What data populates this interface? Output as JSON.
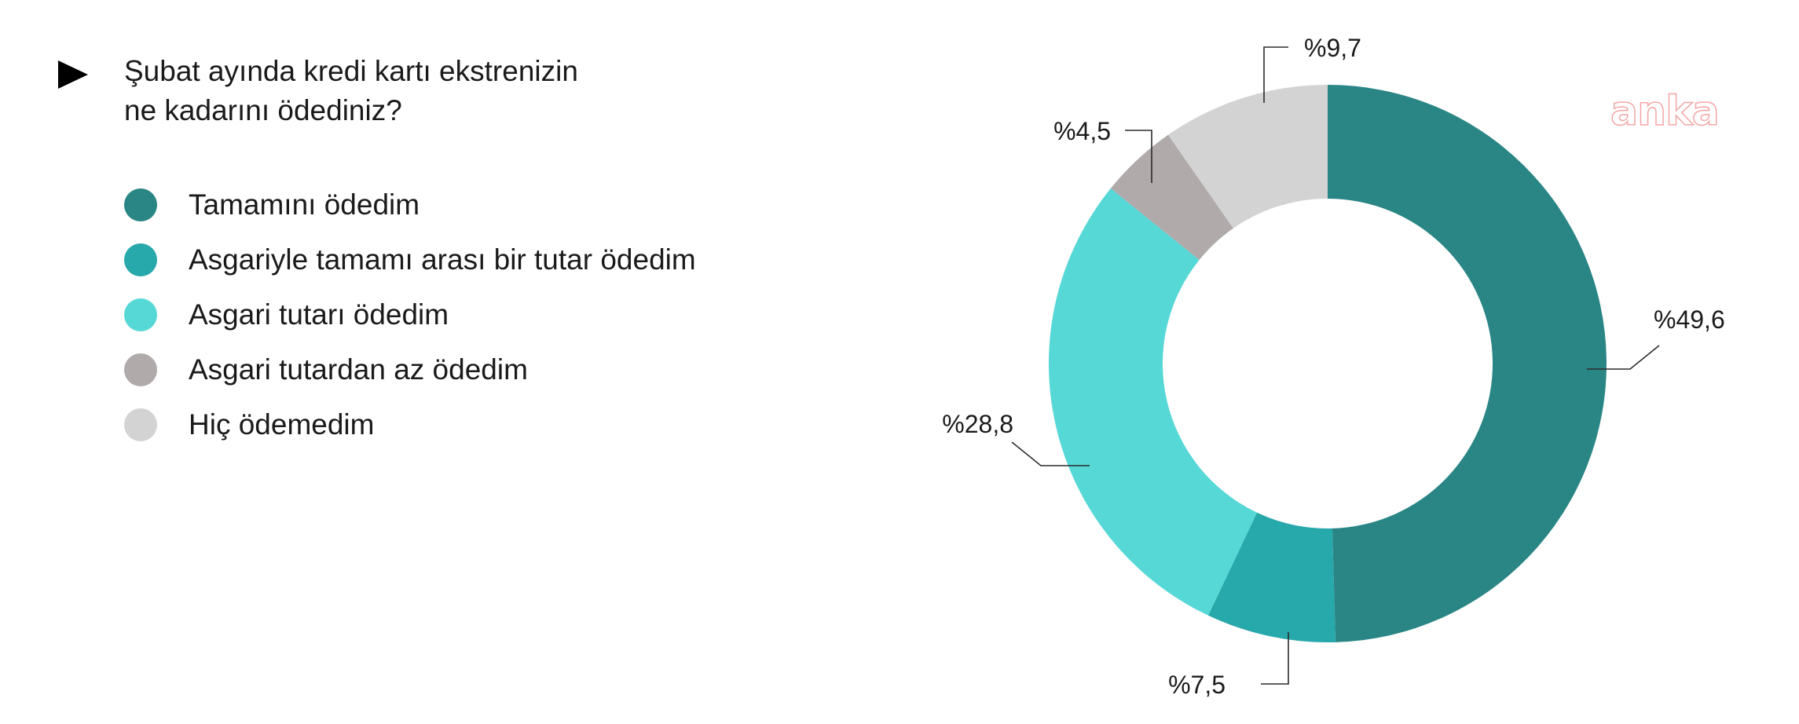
{
  "question": {
    "lines": [
      "Şubat ayında kredi kartı ekstrenizin",
      "ne kadarını ödediniz?"
    ],
    "bullet_icon": "play-triangle-icon"
  },
  "watermark": "anka",
  "chart_data": {
    "type": "pie",
    "donut": true,
    "title": "Şubat ayında kredi kartı ekstrenizin ne kadarını ödediniz?",
    "legend_position": "left",
    "categories": [
      "Tamamını ödedim",
      "Asgariyle tamamı arası bir tutar ödedim",
      "Asgari tutarı ödedim",
      "Asgari tutardan az ödedim",
      "Hiç ödemedim"
    ],
    "values": [
      49.6,
      7.5,
      28.8,
      4.5,
      9.7
    ],
    "labels": [
      "%49,6",
      "%7,5",
      "%28,8",
      "%4,5",
      "%9,7"
    ],
    "colors": [
      "#2a8585",
      "#27a8aa",
      "#56d8d6",
      "#b0aaaa",
      "#d3d3d3"
    ]
  }
}
